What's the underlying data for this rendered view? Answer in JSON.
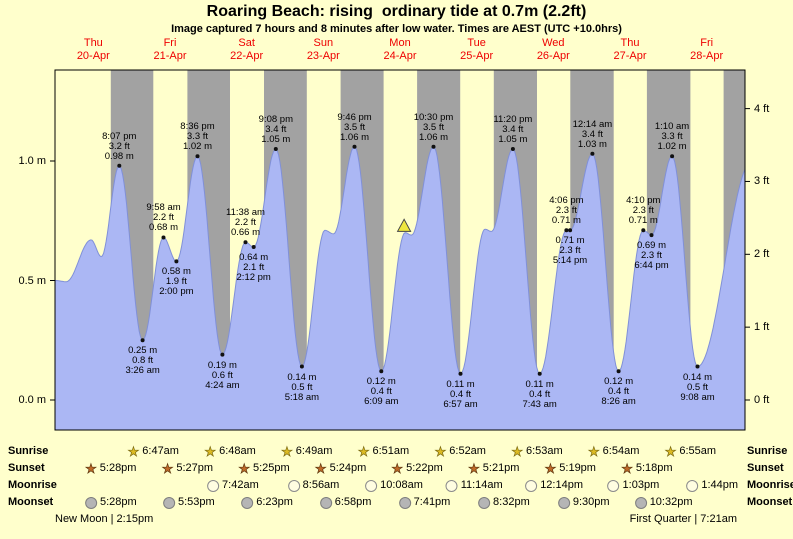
{
  "title": "Roaring Beach: rising  ordinary tide at 0.7m (2.2ft)",
  "subtitle": "Image captured 7 hours and 8 minutes after low water. Times are AEST (UTC +10.0hrs)",
  "chart_data": {
    "type": "area",
    "title": "Roaring Beach: rising  ordinary tide at 0.7m (2.2ft)",
    "x_range_days": 9,
    "y_range_m": [
      -0.13,
      1.38
    ],
    "x_categories": [
      {
        "weekday": "Thu",
        "date": "20-Apr"
      },
      {
        "weekday": "Fri",
        "date": "21-Apr"
      },
      {
        "weekday": "Sat",
        "date": "22-Apr"
      },
      {
        "weekday": "Sun",
        "date": "23-Apr"
      },
      {
        "weekday": "Mon",
        "date": "24-Apr"
      },
      {
        "weekday": "Tue",
        "date": "25-Apr"
      },
      {
        "weekday": "Wed",
        "date": "26-Apr"
      },
      {
        "weekday": "Thu",
        "date": "27-Apr"
      },
      {
        "weekday": "Fri",
        "date": "28-Apr"
      }
    ],
    "y_axis_left_ticks": [
      {
        "label": "1.0 m",
        "m": 1.0
      },
      {
        "label": "0.5 m",
        "m": 0.5
      },
      {
        "label": "0.0 m",
        "m": 0.0
      }
    ],
    "y_axis_right_ticks": [
      {
        "label": "4 ft",
        "ft": 4
      },
      {
        "label": "3 ft",
        "ft": 3
      },
      {
        "label": "2 ft",
        "ft": 2
      },
      {
        "label": "1 ft",
        "ft": 1
      },
      {
        "label": "0 ft",
        "ft": 0
      }
    ],
    "tide_events": [
      {
        "day": 0,
        "kind": "high",
        "time": "8:07 pm",
        "height_ft": 3.2,
        "height_m": 0.98
      },
      {
        "day": 1,
        "kind": "low",
        "time": "3:26 am",
        "height_ft": 0.8,
        "height_m": 0.25
      },
      {
        "day": 1,
        "kind": "high",
        "time": "9:58 am",
        "height_ft": 2.2,
        "height_m": 0.68
      },
      {
        "day": 1,
        "kind": "low",
        "time": "2:00 pm",
        "height_ft": 1.9,
        "height_m": 0.58
      },
      {
        "day": 1,
        "kind": "high",
        "time": "8:36 pm",
        "height_ft": 3.3,
        "height_m": 1.02
      },
      {
        "day": 2,
        "kind": "low",
        "time": "4:24 am",
        "height_ft": 0.6,
        "height_m": 0.19
      },
      {
        "day": 2,
        "kind": "high",
        "time": "11:38 am",
        "height_ft": 2.2,
        "height_m": 0.66
      },
      {
        "day": 2,
        "kind": "low",
        "time": "2:12 pm",
        "height_ft": 2.1,
        "height_m": 0.64
      },
      {
        "day": 2,
        "kind": "high",
        "time": "9:08 pm",
        "height_ft": 3.4,
        "height_m": 1.05
      },
      {
        "day": 3,
        "kind": "low",
        "time": "5:18 am",
        "height_ft": 0.5,
        "height_m": 0.14
      },
      {
        "day": 3,
        "kind": "high",
        "time": "9:46 pm",
        "height_ft": 3.5,
        "height_m": 1.06
      },
      {
        "day": 4,
        "kind": "low",
        "time": "6:09 am",
        "height_ft": 0.4,
        "height_m": 0.12
      },
      {
        "day": 4,
        "kind": "high",
        "time": "10:30 pm",
        "height_ft": 3.5,
        "height_m": 1.06
      },
      {
        "day": 5,
        "kind": "low",
        "time": "6:57 am",
        "height_ft": 0.4,
        "height_m": 0.11
      },
      {
        "day": 5,
        "kind": "high",
        "time": "11:20 pm",
        "height_ft": 3.4,
        "height_m": 1.05
      },
      {
        "day": 6,
        "kind": "low",
        "time": "7:43 am",
        "height_ft": 0.4,
        "height_m": 0.11
      },
      {
        "day": 6,
        "kind": "high",
        "time": "4:06 pm",
        "height_ft": 2.3,
        "height_m": 0.71
      },
      {
        "day": 6,
        "kind": "low",
        "time": "5:14 pm",
        "height_ft": 2.3,
        "height_m": 0.71
      },
      {
        "day": 7,
        "kind": "high",
        "time": "12:14 am",
        "height_ft": 3.4,
        "height_m": 1.03
      },
      {
        "day": 7,
        "kind": "low",
        "time": "8:26 am",
        "height_ft": 0.4,
        "height_m": 0.12
      },
      {
        "day": 7,
        "kind": "high",
        "time": "4:10 pm",
        "height_ft": 2.3,
        "height_m": 0.71
      },
      {
        "day": 7,
        "kind": "low",
        "time": "6:44 pm",
        "height_ft": 2.3,
        "height_m": 0.69
      },
      {
        "day": 8,
        "kind": "high",
        "time": "1:10 am",
        "height_ft": 3.3,
        "height_m": 1.02
      },
      {
        "day": 8,
        "kind": "low",
        "time": "9:08 am",
        "height_ft": 0.5,
        "height_m": 0.14
      }
    ],
    "unlabeled_curve_points": [
      {
        "t": 0,
        "height_m": 0.5
      },
      {
        "t": 3.5,
        "height_m": 0.495
      },
      {
        "t": 11.3,
        "height_m": 0.67
      },
      {
        "t": 14.5,
        "height_m": 0.6
      },
      {
        "t": 84.5,
        "height_m": 0.71
      },
      {
        "t": 87.2,
        "height_m": 0.695
      },
      {
        "t": 109.6,
        "height_m": 0.7
      },
      {
        "t": 111.6,
        "height_m": 0.69
      },
      {
        "t": 134.6,
        "height_m": 0.715
      },
      {
        "t": 136.6,
        "height_m": 0.705
      },
      {
        "t": 218.2,
        "height_m": 1.0
      }
    ],
    "current_time_marker": {
      "day": 4,
      "time": "1:17 pm"
    },
    "colors": {
      "background": "#ffffcc",
      "night_band": "#a2a2a2",
      "tide_fill": "#abb7f4",
      "tide_edge": "#8090d8",
      "day_label_red": "#ee0000",
      "marker_yellow": "#eee63e"
    }
  },
  "sun_moon": {
    "rows": [
      {
        "key": "sunrise",
        "label": "Sunrise",
        "entries": [
          {
            "day": 1,
            "time": "6:47am"
          },
          {
            "day": 2,
            "time": "6:48am"
          },
          {
            "day": 3,
            "time": "6:49am"
          },
          {
            "day": 4,
            "time": "6:51am"
          },
          {
            "day": 5,
            "time": "6:52am"
          },
          {
            "day": 6,
            "time": "6:53am"
          },
          {
            "day": 7,
            "time": "6:54am"
          },
          {
            "day": 8,
            "time": "6:55am"
          }
        ]
      },
      {
        "key": "sunset",
        "label": "Sunset",
        "entries": [
          {
            "day": 0,
            "time": "5:28pm"
          },
          {
            "day": 1,
            "time": "5:27pm"
          },
          {
            "day": 2,
            "time": "5:25pm"
          },
          {
            "day": 3,
            "time": "5:24pm"
          },
          {
            "day": 4,
            "time": "5:22pm"
          },
          {
            "day": 5,
            "time": "5:21pm"
          },
          {
            "day": 6,
            "time": "5:19pm"
          },
          {
            "day": 7,
            "time": "5:18pm"
          }
        ]
      },
      {
        "key": "moonrise",
        "label": "Moonrise",
        "entries": [
          {
            "day": 2,
            "time": "7:42am"
          },
          {
            "day": 3,
            "time": "8:56am"
          },
          {
            "day": 4,
            "time": "10:08am"
          },
          {
            "day": 5,
            "time": "11:14am"
          },
          {
            "day": 6,
            "time": "12:14pm"
          },
          {
            "day": 7,
            "time": "1:03pm"
          },
          {
            "day": 8,
            "time": "1:44pm"
          }
        ]
      },
      {
        "key": "moonset",
        "label": "Moonset",
        "entries": [
          {
            "day": 0,
            "time": "5:28pm"
          },
          {
            "day": 1,
            "time": "5:53pm"
          },
          {
            "day": 2,
            "time": "6:23pm"
          },
          {
            "day": 3,
            "time": "6:58pm"
          },
          {
            "day": 4,
            "time": "7:41pm"
          },
          {
            "day": 5,
            "time": "8:32pm"
          },
          {
            "day": 6,
            "time": "9:30pm"
          },
          {
            "day": 7,
            "time": "10:32pm"
          }
        ]
      }
    ],
    "phases": [
      {
        "label": "New Moon | 2:15pm",
        "position": "left"
      },
      {
        "label": "First Quarter | 7:21am",
        "position": "right"
      }
    ]
  }
}
